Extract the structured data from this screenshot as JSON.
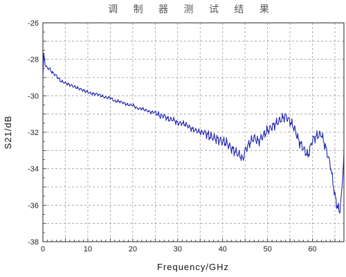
{
  "chart_data": {
    "type": "line",
    "title": "调 制 器 测 试 结 果",
    "xlabel": "Frequency/GHz",
    "ylabel": "S21/dB",
    "xlim": [
      0,
      67
    ],
    "ylim": [
      -38,
      -26
    ],
    "xticks": [
      0,
      10,
      20,
      30,
      40,
      50,
      60
    ],
    "yticks": [
      -26,
      -28,
      -30,
      -32,
      -34,
      -36,
      -38
    ],
    "grid": true,
    "series": [
      {
        "color": "#1f24b0",
        "x": [
          0,
          0.2,
          0.5,
          1,
          1.5,
          2,
          3,
          4,
          5,
          6,
          7,
          8,
          9,
          10,
          11,
          12,
          13,
          14,
          15,
          16,
          17,
          18,
          19,
          20,
          21,
          22,
          23,
          24,
          25,
          26,
          27,
          28,
          29,
          30,
          31,
          32,
          33,
          34,
          35,
          36,
          37,
          38,
          39,
          40,
          41,
          42,
          43,
          44,
          44.5,
          45,
          46,
          47,
          48,
          49,
          50,
          51,
          52,
          53,
          54,
          55,
          56,
          57,
          58,
          59,
          60,
          61,
          62,
          63,
          64,
          65,
          65.5,
          66,
          66.5,
          67
        ],
        "y": [
          -29.0,
          -27.7,
          -28.3,
          -28.5,
          -28.5,
          -28.7,
          -28.9,
          -29.2,
          -29.3,
          -29.4,
          -29.5,
          -29.6,
          -29.7,
          -29.8,
          -29.9,
          -29.9,
          -30.0,
          -30.1,
          -30.1,
          -30.3,
          -30.3,
          -30.4,
          -30.5,
          -30.5,
          -30.7,
          -30.7,
          -30.8,
          -30.9,
          -30.9,
          -31.1,
          -31.1,
          -31.3,
          -31.3,
          -31.5,
          -31.5,
          -31.6,
          -31.8,
          -31.9,
          -32.0,
          -32.0,
          -32.2,
          -32.3,
          -32.4,
          -32.5,
          -32.6,
          -32.9,
          -33.1,
          -33.3,
          -33.5,
          -33.0,
          -32.6,
          -32.3,
          -32.5,
          -32.2,
          -31.9,
          -31.7,
          -31.5,
          -31.3,
          -31.1,
          -31.4,
          -31.8,
          -32.5,
          -32.9,
          -33.3,
          -32.4,
          -32.2,
          -32.1,
          -32.9,
          -33.8,
          -35.5,
          -36.0,
          -36.4,
          -35.4,
          -33.1
        ]
      }
    ]
  }
}
